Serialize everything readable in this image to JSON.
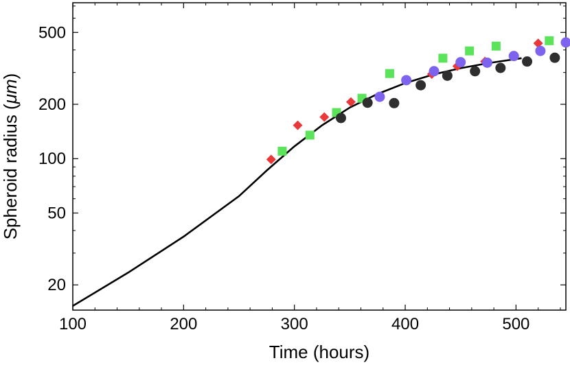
{
  "chart_data": {
    "type": "scatter",
    "title": "",
    "xlabel": "Time (hours)",
    "ylabel_prefix": "Spheroid radius (",
    "ylabel_unit": "μm",
    "ylabel_suffix": ")",
    "xlim": [
      100,
      545
    ],
    "ylim": [
      14.5,
      730
    ],
    "yscale": "log",
    "grid": false,
    "legend": "none",
    "x_ticks": [
      100,
      200,
      300,
      400,
      500
    ],
    "y_ticks": [
      20,
      50,
      100,
      200,
      500
    ],
    "x_tick_labels": [
      "100",
      "200",
      "300",
      "400",
      "500"
    ],
    "y_tick_labels": [
      "20",
      "50",
      "100",
      "200",
      "500"
    ],
    "series": [
      {
        "marker": "diamond",
        "color": "#e8383a",
        "points": [
          [
            279,
            99
          ],
          [
            303,
            153
          ],
          [
            327,
            170
          ],
          [
            351,
            206
          ],
          [
            424,
            294
          ],
          [
            447,
            325
          ],
          [
            472,
            345
          ],
          [
            520,
            435
          ]
        ]
      },
      {
        "marker": "square",
        "color": "#5be35b",
        "points": [
          [
            289,
            110
          ],
          [
            314,
            135
          ],
          [
            338,
            180
          ],
          [
            361,
            216
          ],
          [
            386,
            296
          ],
          [
            434,
            360
          ],
          [
            458,
            395
          ],
          [
            482,
            420
          ],
          [
            530,
            450
          ]
        ]
      },
      {
        "marker": "circle",
        "color": "#7d63ee",
        "points": [
          [
            377,
            220
          ],
          [
            401,
            272
          ],
          [
            426,
            305
          ],
          [
            450,
            342
          ],
          [
            474,
            340
          ],
          [
            498,
            370
          ],
          [
            522,
            395
          ],
          [
            545,
            440
          ]
        ]
      },
      {
        "marker": "circle",
        "color": "#2e2e2e",
        "points": [
          [
            342,
            168
          ],
          [
            366,
            204
          ],
          [
            390,
            203
          ],
          [
            414,
            255
          ],
          [
            438,
            288
          ],
          [
            463,
            305
          ],
          [
            486,
            318
          ],
          [
            510,
            345
          ],
          [
            535,
            362
          ]
        ]
      }
    ],
    "fit_line": {
      "color": "#000000",
      "points": [
        [
          100,
          15.3
        ],
        [
          150,
          23.4
        ],
        [
          200,
          37.0
        ],
        [
          250,
          62.0
        ],
        [
          275,
          86.0
        ],
        [
          300,
          117.0
        ],
        [
          325,
          153.0
        ],
        [
          350,
          192.0
        ],
        [
          375,
          228.0
        ],
        [
          400,
          262.0
        ],
        [
          425,
          292.0
        ],
        [
          450,
          317.0
        ],
        [
          475,
          338.0
        ],
        [
          505,
          360.0
        ]
      ]
    }
  }
}
